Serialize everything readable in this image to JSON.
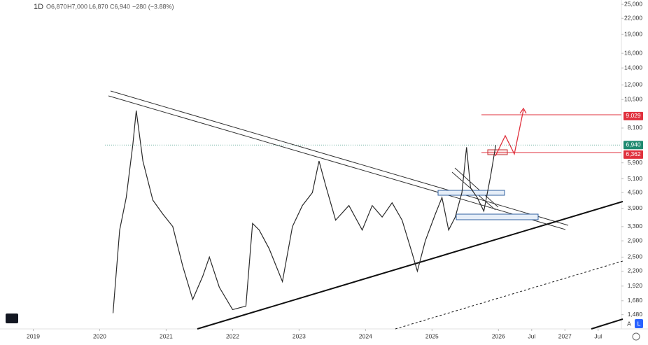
{
  "header": {
    "interval": "1D",
    "open": "O6,870",
    "high": "H7,000",
    "low": "L6,870",
    "close": "C6,940",
    "change": "−280 (−3.88%)"
  },
  "chart_data": {
    "type": "line",
    "log_scale": true,
    "color": "#2a2a2a",
    "xlim": [
      2018.5,
      2027.85
    ],
    "ylim": [
      1300,
      26000
    ],
    "x": [
      2020.2,
      2020.3,
      2020.4,
      2020.5,
      2020.55,
      2020.65,
      2020.8,
      2020.95,
      2021.1,
      2021.25,
      2021.4,
      2021.55,
      2021.65,
      2021.8,
      2022.0,
      2022.2,
      2022.3,
      2022.4,
      2022.55,
      2022.75,
      2022.9,
      2023.05,
      2023.2,
      2023.3,
      2023.4,
      2023.55,
      2023.75,
      2023.95,
      2024.1,
      2024.25,
      2024.4,
      2024.55,
      2024.7,
      2024.78,
      2024.9,
      2025.05,
      2025.15,
      2025.25,
      2025.35,
      2025.45,
      2025.52,
      2025.58,
      2025.68,
      2025.78,
      2025.88,
      2025.96
    ],
    "values": [
      1500,
      3200,
      4300,
      7000,
      9500,
      6000,
      4200,
      3700,
      3300,
      2300,
      1700,
      2100,
      2500,
      1900,
      1550,
      1600,
      3400,
      3200,
      2700,
      2000,
      3300,
      4000,
      4500,
      6000,
      4800,
      3500,
      4000,
      3200,
      4000,
      3600,
      4100,
      3500,
      2600,
      2200,
      2900,
      3700,
      4300,
      3200,
      3600,
      4500,
      6800,
      4700,
      4300,
      3800,
      5200,
      6940
    ],
    "yticks": [
      {
        "value": 25000,
        "label": "25,000"
      },
      {
        "value": 22000,
        "label": "22,000"
      },
      {
        "value": 19000,
        "label": "19,000"
      },
      {
        "value": 16000,
        "label": "16,000"
      },
      {
        "value": 14000,
        "label": "14,000"
      },
      {
        "value": 12000,
        "label": "12,000"
      },
      {
        "value": 10500,
        "label": "10,500"
      },
      {
        "value": 8100,
        "label": "8,100"
      },
      {
        "value": 5900,
        "label": "5,900"
      },
      {
        "value": 5100,
        "label": "5,100"
      },
      {
        "value": 4500,
        "label": "4,500"
      },
      {
        "value": 3900,
        "label": "3,900"
      },
      {
        "value": 3300,
        "label": "3,300"
      },
      {
        "value": 2900,
        "label": "2,900"
      },
      {
        "value": 2500,
        "label": "2,500"
      },
      {
        "value": 2200,
        "label": "2,200"
      },
      {
        "value": 1920,
        "label": "1,920"
      },
      {
        "value": 1680,
        "label": "1,680"
      },
      {
        "value": 1480,
        "label": "1,480"
      }
    ],
    "xticks": [
      2019,
      2020,
      2021,
      2022,
      2023,
      2024,
      2025,
      2026,
      {
        "value": 2026.5,
        "label": "Jul"
      },
      2027,
      {
        "value": 2027.5,
        "label": "Jul"
      }
    ],
    "price_tags": [
      {
        "value": 9029,
        "label": "9,029",
        "color": "#e0313d"
      },
      {
        "value": 6940,
        "label": "6,940",
        "color": "#1f8a70"
      },
      {
        "value": 6362,
        "label": "6,362",
        "color": "#e0313d"
      }
    ]
  },
  "controls": [
    "A",
    "L"
  ]
}
